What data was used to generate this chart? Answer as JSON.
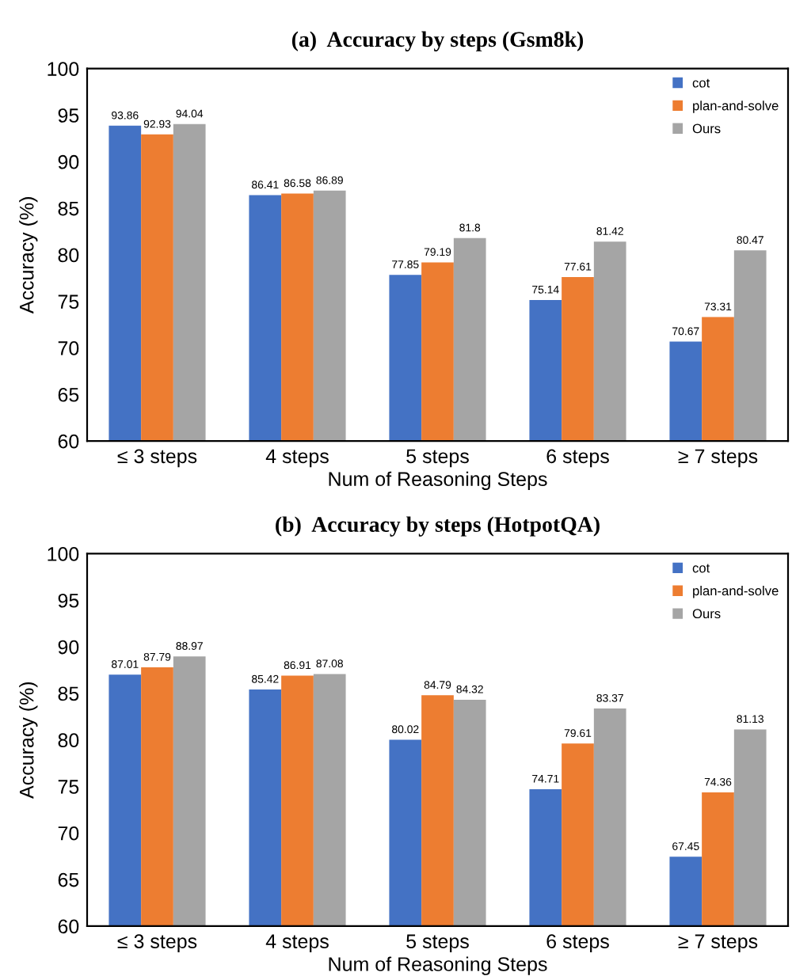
{
  "chart_data": [
    {
      "type": "bar",
      "title": "(a)  Accuracy by steps (Gsm8k)",
      "xlabel": "Num of Reasoning Steps",
      "ylabel": "Accuracy (%)",
      "categories": [
        "≤ 3 steps",
        "4 steps",
        "5 steps",
        "6 steps",
        "≥ 7 steps"
      ],
      "series": [
        {
          "name": "cot",
          "color": "#4472c4",
          "values": [
            93.86,
            86.41,
            77.85,
            75.14,
            70.67
          ]
        },
        {
          "name": "plan-and-solve",
          "color": "#ed7d31",
          "values": [
            92.93,
            86.58,
            79.19,
            77.61,
            73.31
          ]
        },
        {
          "name": "Ours",
          "color": "#a5a5a5",
          "values": [
            94.04,
            86.89,
            81.8,
            81.42,
            80.47
          ]
        }
      ],
      "ylim": [
        60,
        100
      ],
      "yticks": [
        60,
        65,
        70,
        75,
        80,
        85,
        90,
        95,
        100
      ],
      "grid": false,
      "legend": "top right",
      "data_labels": true
    },
    {
      "type": "bar",
      "title": "(b)  Accuracy by steps (HotpotQA)",
      "xlabel": "Num of Reasoning Steps",
      "ylabel": "Accuracy (%)",
      "categories": [
        "≤ 3 steps",
        "4 steps",
        "5 steps",
        "6 steps",
        "≥ 7 steps"
      ],
      "series": [
        {
          "name": "cot",
          "color": "#4472c4",
          "values": [
            87.01,
            85.42,
            80.02,
            74.71,
            67.45
          ]
        },
        {
          "name": "plan-and-solve",
          "color": "#ed7d31",
          "values": [
            87.79,
            86.91,
            84.79,
            79.61,
            74.36
          ]
        },
        {
          "name": "Ours",
          "color": "#a5a5a5",
          "values": [
            88.97,
            87.08,
            84.32,
            83.37,
            81.13
          ]
        }
      ],
      "ylim": [
        60,
        100
      ],
      "yticks": [
        60,
        65,
        70,
        75,
        80,
        85,
        90,
        95,
        100
      ],
      "grid": false,
      "legend": "top right",
      "data_labels": true
    }
  ]
}
